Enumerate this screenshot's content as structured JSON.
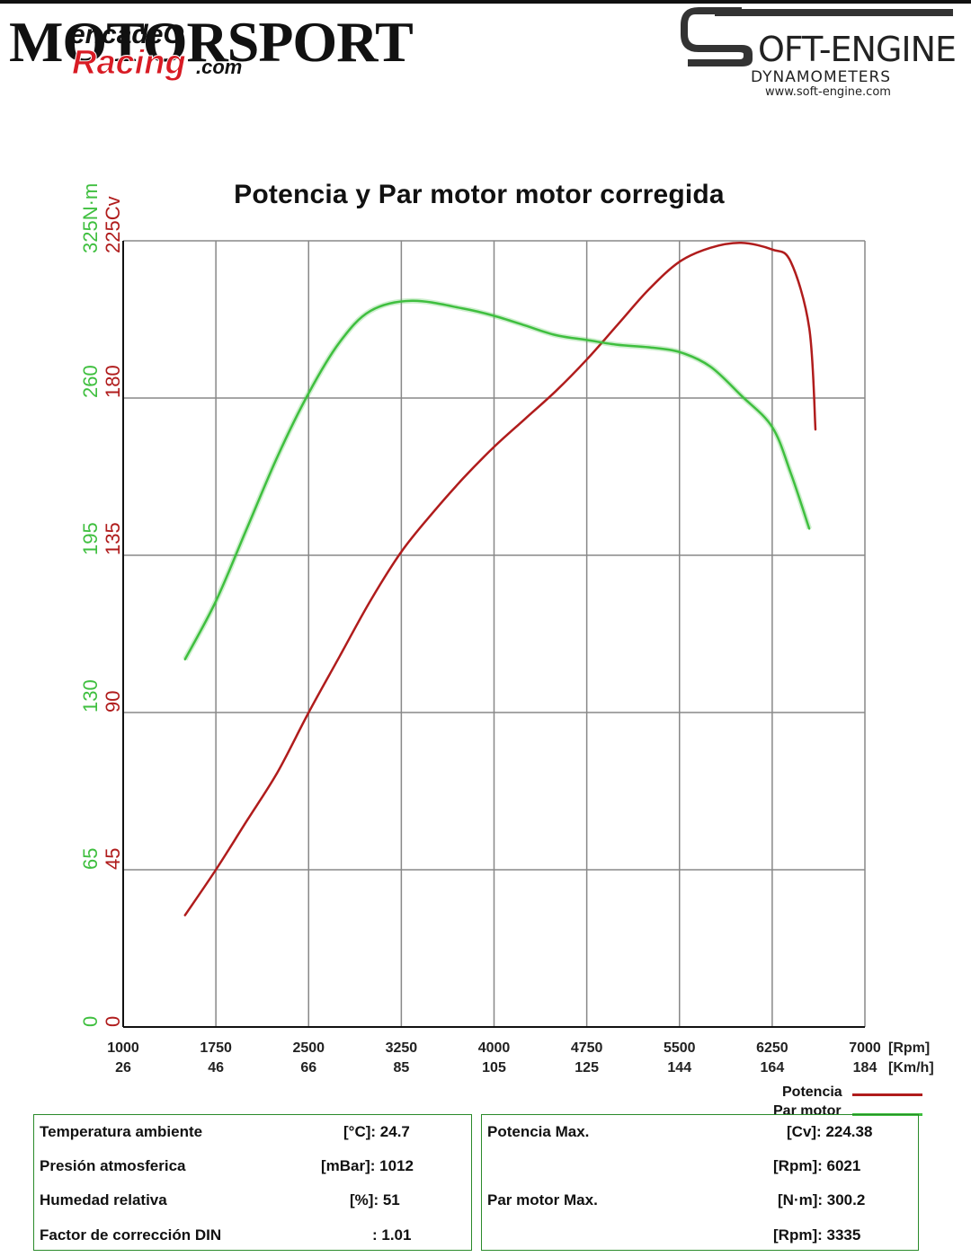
{
  "logos": {
    "left_brand": "MOTORSPORT",
    "left_overlay_top": "encadeO",
    "left_overlay_bottom": "Racing",
    "left_overlay_suffix": ".com",
    "right_brand": "OFT-ENGINE",
    "right_sub": "DYNAMOMETERS",
    "right_url": "www.soft-engine.com"
  },
  "colors": {
    "power": "#b01c1c",
    "torque": "#3fbf3f",
    "grid": "#888888",
    "box_border": "#2a8a2a"
  },
  "chart_data": {
    "type": "line",
    "title": "Potencia y Par motor motor corregida",
    "x_unit": "[Rpm]",
    "x2_unit": "[Km/h]",
    "x_ticks": [
      "1000",
      "1750",
      "2500",
      "3250",
      "4000",
      "4750",
      "5500",
      "6250",
      "7000"
    ],
    "x2_ticks": [
      "26",
      "46",
      "66",
      "85",
      "105",
      "125",
      "144",
      "164",
      "184"
    ],
    "xlim": [
      1000,
      7000
    ],
    "power_axis": {
      "unit": "225Cv",
      "ticks": [
        "0",
        "45",
        "90",
        "135",
        "180"
      ],
      "ylim": [
        0,
        225
      ]
    },
    "torque_axis": {
      "unit": "325N·m",
      "ticks": [
        "0",
        "65",
        "130",
        "195",
        "260"
      ],
      "ylim": [
        0,
        325
      ]
    },
    "grid": true,
    "legend_position": "bottom-right",
    "series": [
      {
        "name": "Potencia",
        "axis": "power",
        "points": [
          [
            1500,
            32
          ],
          [
            1750,
            45
          ],
          [
            2000,
            59
          ],
          [
            2250,
            73
          ],
          [
            2500,
            90
          ],
          [
            2750,
            106
          ],
          [
            3000,
            122
          ],
          [
            3250,
            136
          ],
          [
            3500,
            147
          ],
          [
            3750,
            157
          ],
          [
            4000,
            166
          ],
          [
            4250,
            174
          ],
          [
            4500,
            182
          ],
          [
            4750,
            191
          ],
          [
            5000,
            201
          ],
          [
            5250,
            211
          ],
          [
            5500,
            219
          ],
          [
            5750,
            223
          ],
          [
            6000,
            224.4
          ],
          [
            6250,
            222.5
          ],
          [
            6400,
            219
          ],
          [
            6550,
            200
          ],
          [
            6600,
            171
          ]
        ]
      },
      {
        "name": "Par motor",
        "axis": "torque",
        "points": [
          [
            1500,
            152
          ],
          [
            1750,
            176
          ],
          [
            2000,
            206
          ],
          [
            2250,
            236
          ],
          [
            2500,
            262
          ],
          [
            2750,
            283
          ],
          [
            3000,
            296
          ],
          [
            3335,
            300.2
          ],
          [
            3750,
            297
          ],
          [
            4000,
            294
          ],
          [
            4250,
            290
          ],
          [
            4500,
            286
          ],
          [
            4750,
            284
          ],
          [
            5000,
            282
          ],
          [
            5250,
            281
          ],
          [
            5500,
            279
          ],
          [
            5750,
            273
          ],
          [
            6000,
            261
          ],
          [
            6250,
            248
          ],
          [
            6400,
            229
          ],
          [
            6550,
            206
          ]
        ]
      }
    ]
  },
  "info_left": {
    "rows": [
      {
        "key": "Temperatura ambiente",
        "val": "[°C]: 24.7"
      },
      {
        "key": "Presión atmosferica",
        "val": "[mBar]: 1012"
      },
      {
        "key": "Humedad relativa",
        "val": "[%]: 51"
      },
      {
        "key": "Factor de corrección DIN",
        "val": ": 1.01"
      }
    ]
  },
  "info_right": {
    "rows": [
      {
        "key": "Potencia Max.",
        "val": "[Cv]: 224.38"
      },
      {
        "key": "",
        "val": "[Rpm]: 6021"
      },
      {
        "key": "Par motor Max.",
        "val": "[N·m]: 300.2"
      },
      {
        "key": "",
        "val": "[Rpm]: 3335"
      }
    ]
  }
}
